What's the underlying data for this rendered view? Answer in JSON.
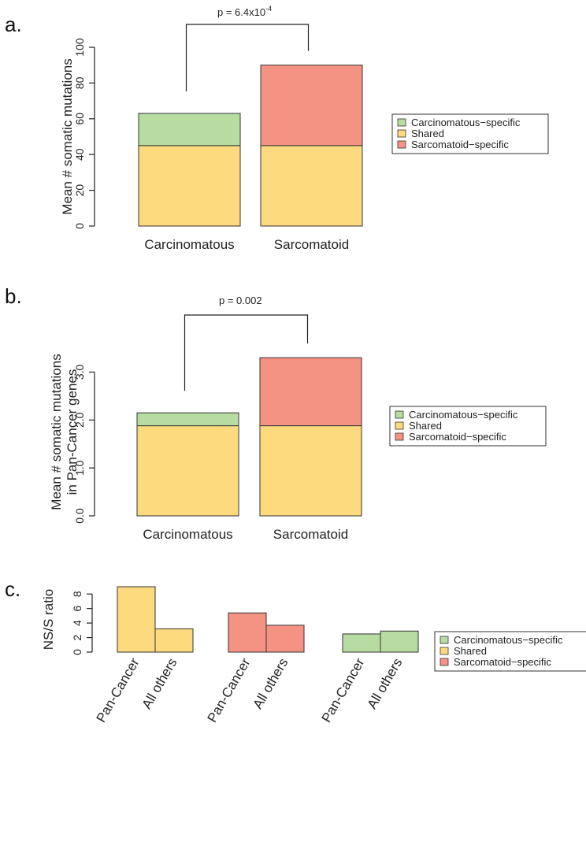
{
  "colors": {
    "carcinomatous_specific": "#b7dca2",
    "shared": "#fdda7d",
    "sarcomatoid_specific": "#f49384"
  },
  "legend": {
    "items": [
      {
        "key": "carcinomatous_specific",
        "label": "Carcinomatous−specific"
      },
      {
        "key": "shared",
        "label": "Shared"
      },
      {
        "key": "sarcomatoid_specific",
        "label": "Sarcomatoid−specific"
      }
    ]
  },
  "panel_a": {
    "panel_label": "a.",
    "p_value_base": "p = 6.4x10",
    "p_value_exp": "-4"
  },
  "panel_b": {
    "panel_label": "b.",
    "p_value": "p = 0.002"
  },
  "panel_c": {
    "panel_label": "c."
  },
  "chart_data": [
    {
      "type": "bar",
      "stacked": true,
      "categories": [
        "Carcinomatous",
        "Sarcomatoid"
      ],
      "series": [
        {
          "name": "Shared",
          "values": [
            45,
            45
          ]
        },
        {
          "name": "Carcinomatous−specific",
          "values": [
            18,
            0
          ]
        },
        {
          "name": "Sarcomatoid−specific",
          "values": [
            0,
            45
          ]
        }
      ],
      "ylabel": "Mean # somatic mutations",
      "ylim": [
        0,
        100
      ],
      "yticks": [
        0,
        20,
        40,
        60,
        80,
        100
      ],
      "annotation": "p = 6.4x10-4",
      "legend": "right"
    },
    {
      "type": "bar",
      "stacked": true,
      "categories": [
        "Carcinomatous",
        "Sarcomatoid"
      ],
      "series": [
        {
          "name": "Shared",
          "values": [
            1.88,
            1.88
          ]
        },
        {
          "name": "Carcinomatous−specific",
          "values": [
            0.27,
            0
          ]
        },
        {
          "name": "Sarcomatoid−specific",
          "values": [
            0,
            1.42
          ]
        }
      ],
      "ylabel_lines": [
        "Mean # somatic mutations",
        "in Pan-Cancer genes"
      ],
      "ylim": [
        0,
        3.5
      ],
      "yticks": [
        "0.0",
        "1.0",
        "2.0",
        "3.0"
      ],
      "annotation": "p = 0.002",
      "legend": "right"
    },
    {
      "type": "bar",
      "categories": [
        "Pan-Cancer",
        "All others",
        "Pan-Cancer",
        "All others",
        "Pan-Cancer",
        "All others"
      ],
      "groups": [
        {
          "name": "Shared",
          "values": [
            9.0,
            3.2
          ]
        },
        {
          "name": "Sarcomatoid−specific",
          "values": [
            5.4,
            3.7
          ]
        },
        {
          "name": "Carcinomatous−specific",
          "values": [
            2.5,
            2.9
          ]
        }
      ],
      "ylabel": "NS/S ratio",
      "ylim": [
        0,
        9
      ],
      "yticks": [
        0,
        2,
        4,
        6,
        8
      ],
      "legend": "right"
    }
  ]
}
